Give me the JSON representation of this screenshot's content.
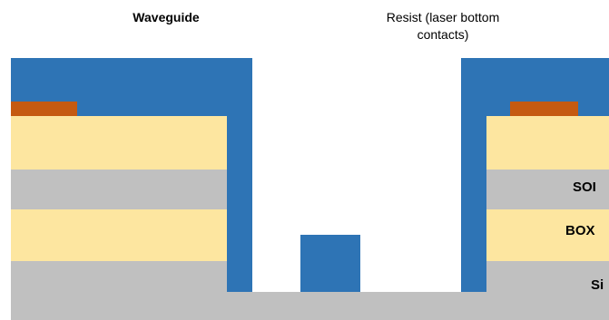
{
  "labels": {
    "waveguide": "Waveguide",
    "resist": "Resist (laser bottom contacts)",
    "soi": "SOI",
    "box": "BOX",
    "si": "Si"
  },
  "colors": {
    "resist_blue": "#2e74b5",
    "yellow_layer": "#fde6a0",
    "grey_layer": "#c0c0c0",
    "contact_orange": "#c55a11"
  }
}
